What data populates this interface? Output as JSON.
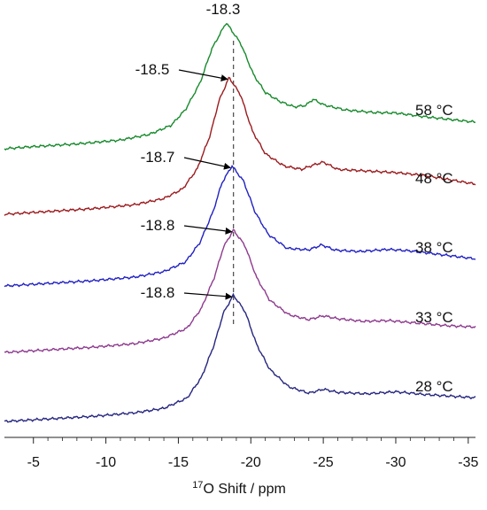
{
  "chart_data": {
    "type": "line",
    "xlabel_sup": "17",
    "xlabel_main": "O Shift / ppm",
    "xlim": [
      -3,
      -35.5
    ],
    "x_ticks": [
      -5,
      -10,
      -15,
      -20,
      -25,
      -30,
      -35
    ],
    "x_tick_labels": [
      "-5",
      "-10",
      "-15",
      "-20",
      "-25",
      "-30",
      "-35"
    ],
    "reference_line_ppm": -18.8,
    "series": [
      {
        "name": "58 °C",
        "color": "#178a2c",
        "peak_label": "-18.3",
        "peak_ppm": -18.3,
        "points": [
          [
            -3,
            0.0
          ],
          [
            -5,
            0.01
          ],
          [
            -8,
            0.02
          ],
          [
            -11,
            0.04
          ],
          [
            -13,
            0.08
          ],
          [
            -14.5,
            0.15
          ],
          [
            -15.5,
            0.28
          ],
          [
            -16.5,
            0.5
          ],
          [
            -17.3,
            0.78
          ],
          [
            -18.3,
            1.0
          ],
          [
            -19.3,
            0.82
          ],
          [
            -20.2,
            0.55
          ],
          [
            -21,
            0.4
          ],
          [
            -22,
            0.32
          ],
          [
            -23,
            0.27
          ],
          [
            -23.8,
            0.28
          ],
          [
            -24.3,
            0.33
          ],
          [
            -25,
            0.28
          ],
          [
            -26.5,
            0.23
          ],
          [
            -28.5,
            0.2
          ],
          [
            -30,
            0.19
          ],
          [
            -32,
            0.15
          ],
          [
            -35.5,
            0.09
          ]
        ]
      },
      {
        "name": "48 °C",
        "color": "#9b1b1e",
        "peak_label": "-18.5",
        "peak_ppm": -18.5,
        "points": [
          [
            -3,
            0.0
          ],
          [
            -6,
            0.01
          ],
          [
            -9,
            0.02
          ],
          [
            -12,
            0.04
          ],
          [
            -14,
            0.08
          ],
          [
            -15.3,
            0.15
          ],
          [
            -16.3,
            0.3
          ],
          [
            -17.2,
            0.56
          ],
          [
            -17.8,
            0.82
          ],
          [
            -18.5,
            1.0
          ],
          [
            -19.3,
            0.86
          ],
          [
            -20.1,
            0.58
          ],
          [
            -21,
            0.4
          ],
          [
            -22.3,
            0.3
          ],
          [
            -23.5,
            0.27
          ],
          [
            -24.3,
            0.3
          ],
          [
            -25,
            0.32
          ],
          [
            -26,
            0.26
          ],
          [
            -28,
            0.24
          ],
          [
            -30,
            0.22
          ],
          [
            -32,
            0.19
          ],
          [
            -35.5,
            0.11
          ]
        ]
      },
      {
        "name": "38 °C",
        "color": "#2121c4",
        "peak_label": "-18.7",
        "peak_ppm": -18.7,
        "points": [
          [
            -3,
            0.0
          ],
          [
            -6,
            0.01
          ],
          [
            -9,
            0.02
          ],
          [
            -12,
            0.04
          ],
          [
            -14,
            0.08
          ],
          [
            -15.5,
            0.16
          ],
          [
            -16.5,
            0.33
          ],
          [
            -17.4,
            0.6
          ],
          [
            -18,
            0.85
          ],
          [
            -18.7,
            1.0
          ],
          [
            -19.5,
            0.86
          ],
          [
            -20.3,
            0.58
          ],
          [
            -21.2,
            0.38
          ],
          [
            -22.5,
            0.25
          ],
          [
            -24,
            0.23
          ],
          [
            -24.9,
            0.27
          ],
          [
            -25.8,
            0.22
          ],
          [
            -27.5,
            0.2
          ],
          [
            -29.5,
            0.21
          ],
          [
            -31,
            0.19
          ],
          [
            -33,
            0.15
          ],
          [
            -35.5,
            0.1
          ]
        ]
      },
      {
        "name": "33 °C",
        "color": "#8e3a8e",
        "peak_label": "-18.8",
        "peak_ppm": -18.8,
        "points": [
          [
            -3,
            0.0
          ],
          [
            -6,
            0.01
          ],
          [
            -9,
            0.02
          ],
          [
            -12,
            0.04
          ],
          [
            -14,
            0.08
          ],
          [
            -15.6,
            0.16
          ],
          [
            -16.6,
            0.33
          ],
          [
            -17.5,
            0.6
          ],
          [
            -18.1,
            0.85
          ],
          [
            -18.8,
            1.0
          ],
          [
            -19.6,
            0.86
          ],
          [
            -20.4,
            0.58
          ],
          [
            -21.3,
            0.38
          ],
          [
            -22.6,
            0.25
          ],
          [
            -24,
            0.2
          ],
          [
            -25,
            0.23
          ],
          [
            -26,
            0.2
          ],
          [
            -27.8,
            0.17
          ],
          [
            -29.5,
            0.17
          ],
          [
            -31.5,
            0.14
          ],
          [
            -33.5,
            0.11
          ],
          [
            -35.5,
            0.09
          ]
        ]
      },
      {
        "name": "28 °C",
        "color": "#262680",
        "peak_label": "-18.8",
        "peak_ppm": -18.8,
        "points": [
          [
            -3,
            0.0
          ],
          [
            -6,
            0.01
          ],
          [
            -9,
            0.02
          ],
          [
            -12,
            0.04
          ],
          [
            -14,
            0.07
          ],
          [
            -15.6,
            0.15
          ],
          [
            -16.6,
            0.32
          ],
          [
            -17.5,
            0.6
          ],
          [
            -18.1,
            0.85
          ],
          [
            -18.8,
            1.0
          ],
          [
            -19.6,
            0.86
          ],
          [
            -20.4,
            0.58
          ],
          [
            -21.3,
            0.37
          ],
          [
            -22.6,
            0.22
          ],
          [
            -24,
            0.16
          ],
          [
            -25,
            0.19
          ],
          [
            -26,
            0.16
          ],
          [
            -28,
            0.14
          ],
          [
            -30,
            0.15
          ],
          [
            -32,
            0.12
          ],
          [
            -35.5,
            0.08
          ]
        ]
      }
    ]
  }
}
